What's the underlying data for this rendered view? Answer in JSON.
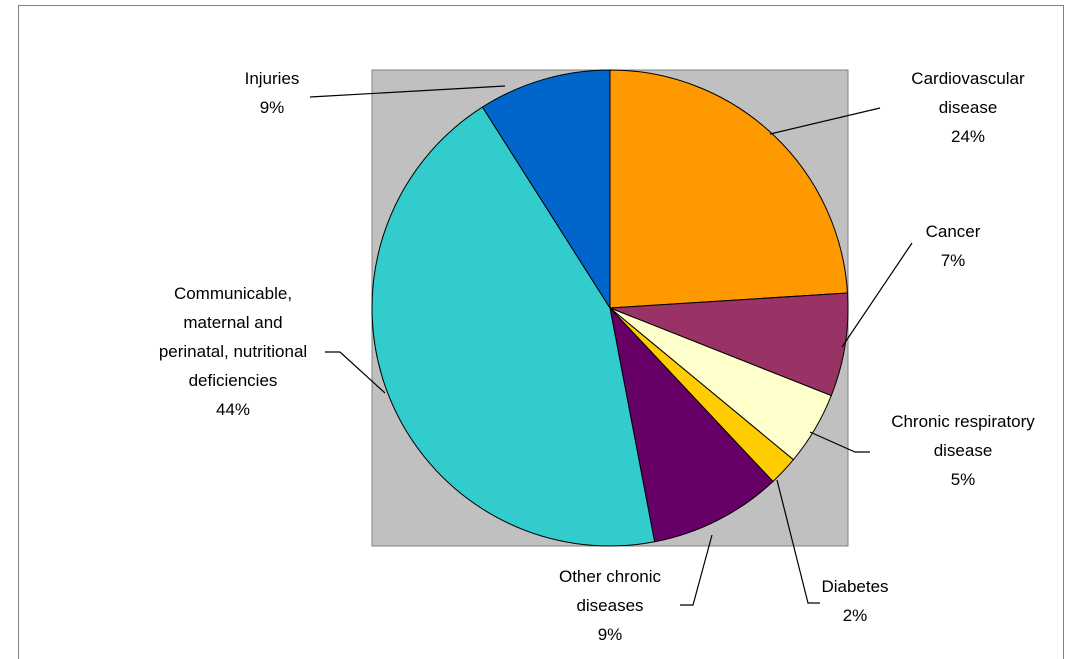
{
  "chart_data": {
    "type": "pie",
    "title": "",
    "plot_area_color": "#c0c0c0",
    "slices": [
      {
        "name": "Cardiovascular disease",
        "value": 24,
        "label_lines": [
          "Cardiovascular",
          "disease"
        ],
        "pct_label": "24%",
        "color": "#ff9900"
      },
      {
        "name": "Cancer",
        "value": 7,
        "label_lines": [
          "Cancer"
        ],
        "pct_label": "7%",
        "color": "#993366"
      },
      {
        "name": "Chronic respiratory disease",
        "value": 5,
        "label_lines": [
          "Chronic respiratory",
          "disease"
        ],
        "pct_label": "5%",
        "color": "#ffffcc"
      },
      {
        "name": "Diabetes",
        "value": 2,
        "label_lines": [
          "Diabetes"
        ],
        "pct_label": "2%",
        "color": "#ffcc00"
      },
      {
        "name": "Other chronic diseases",
        "value": 9,
        "label_lines": [
          "Other chronic",
          "diseases"
        ],
        "pct_label": "9%",
        "color": "#660066"
      },
      {
        "name": "Communicable, maternal and perinatal, nutritional deficiencies",
        "value": 44,
        "label_lines": [
          "Communicable,",
          "maternal and",
          "perinatal, nutritional",
          "deficiencies"
        ],
        "pct_label": "44%",
        "color": "#33cccc"
      },
      {
        "name": "Injuries",
        "value": 9,
        "label_lines": [
          "Injuries"
        ],
        "pct_label": "9%",
        "color": "#0066cc"
      }
    ]
  }
}
